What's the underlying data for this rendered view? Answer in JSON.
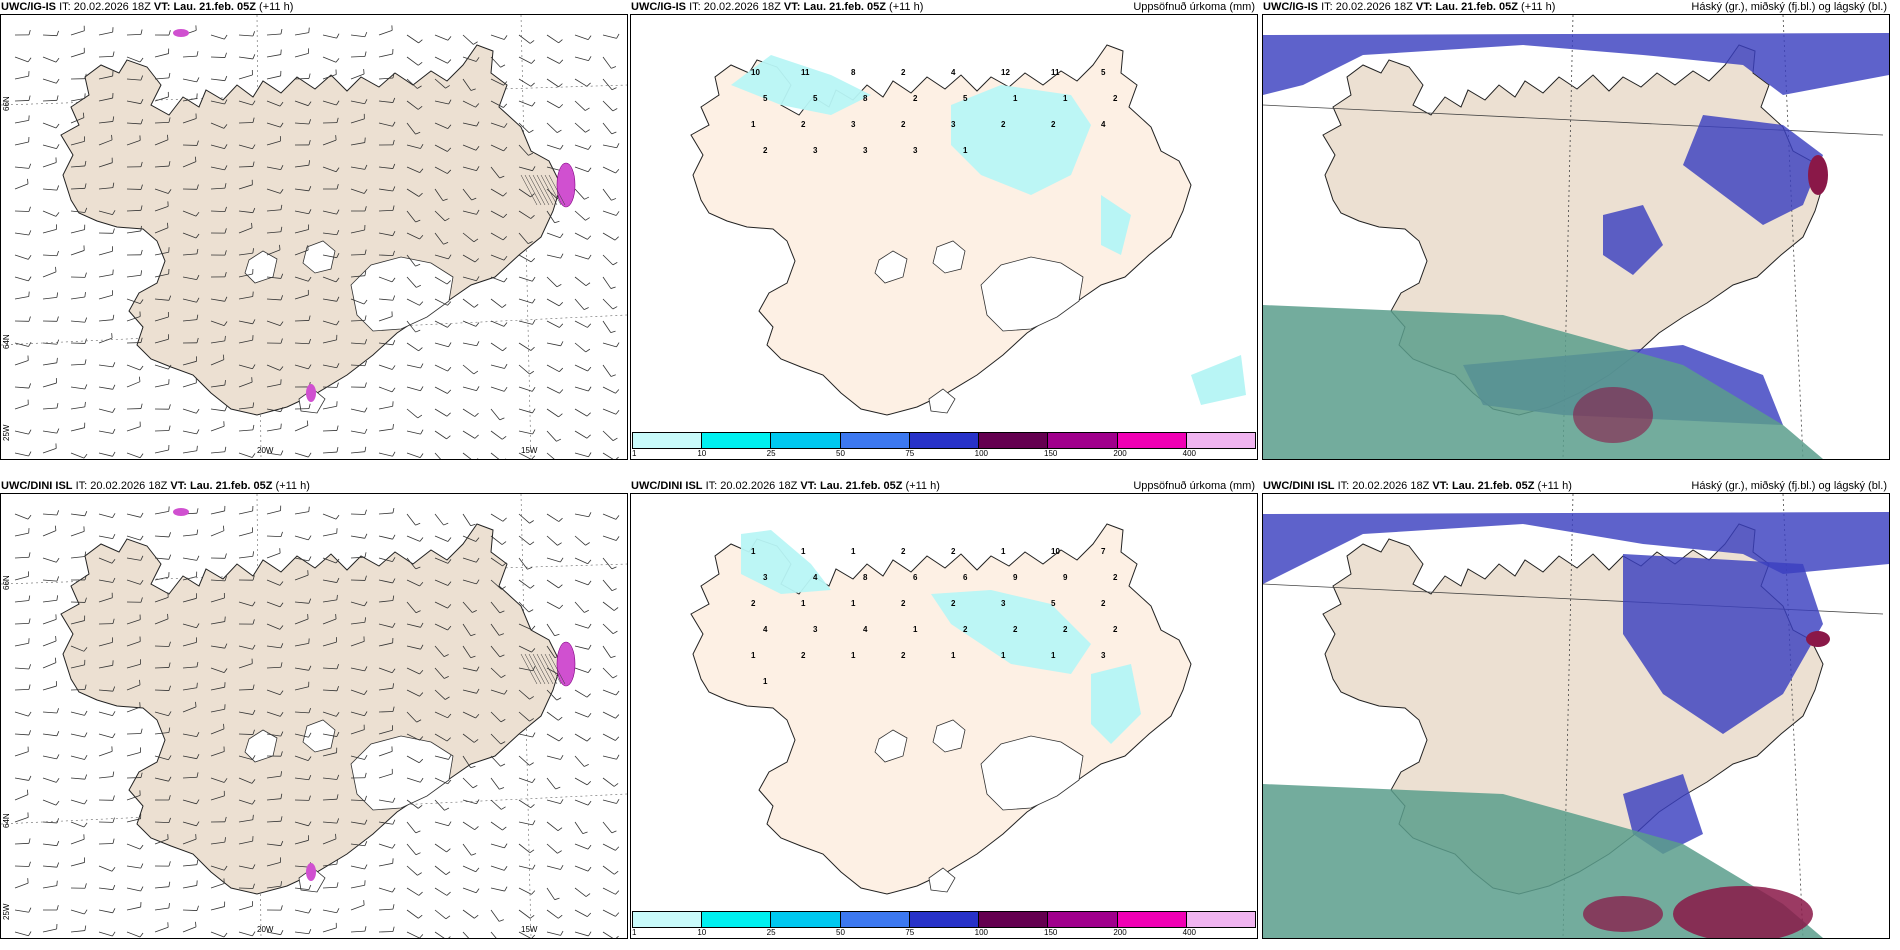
{
  "panels": {
    "top_left": {
      "model": "UWC/IG-IS",
      "it_label": "IT:",
      "it": "20.02.2026 18Z",
      "vt_label": "VT:",
      "vt": "Lau. 21.feb. 05Z",
      "lead": "(+11 h)",
      "title_right": ""
    },
    "top_mid": {
      "model": "UWC/IG-IS",
      "it_label": "IT:",
      "it": "20.02.2026 18Z",
      "vt_label": "VT:",
      "vt": "Lau. 21.feb. 05Z",
      "lead": "(+11 h)",
      "title_right": "Uppsöfnuð úrkoma (mm)"
    },
    "top_right": {
      "model": "UWC/IG-IS",
      "it_label": "IT:",
      "it": "20.02.2026 18Z",
      "vt_label": "VT:",
      "vt": "Lau. 21.feb. 05Z",
      "lead": "(+11 h)",
      "title_right": "Háský (gr.), miðský (fj.bl.) og lágský (bl.)"
    },
    "bot_left": {
      "model": "UWC/DINI ISL",
      "it_label": "IT:",
      "it": "20.02.2026 18Z",
      "vt_label": "VT:",
      "vt": "Lau. 21.feb. 05Z",
      "lead": "(+11 h)",
      "title_right": ""
    },
    "bot_mid": {
      "model": "UWC/DINI ISL",
      "it_label": "IT:",
      "it": "20.02.2026 18Z",
      "vt_label": "VT:",
      "vt": "Lau. 21.feb. 05Z",
      "lead": "(+11 h)",
      "title_right": "Uppsöfnuð úrkoma (mm)"
    },
    "bot_right": {
      "model": "UWC/DINI ISL",
      "it_label": "IT:",
      "it": "20.02.2026 18Z",
      "vt_label": "VT:",
      "vt": "Lau. 21.feb. 05Z",
      "lead": "(+11 h)",
      "title_right": "Háský (gr.), miðský (fj.bl.) og lágský (bl.)"
    }
  },
  "axis_labels": {
    "lon_20w": "20W",
    "lon_15w": "15W",
    "lon_25w": "25W",
    "lat_66n": "66N",
    "lat_64n": "64N"
  },
  "colorbar": {
    "labels": [
      "1",
      "10",
      "25",
      "50",
      "75",
      "100",
      "150",
      "200",
      "400"
    ],
    "colors": [
      "#c8fafa",
      "#00f0f0",
      "#00c8f0",
      "#3c78f0",
      "#2832c8",
      "#640050",
      "#a0008c",
      "#f000b4",
      "#f0b4f0"
    ]
  },
  "precip_numbers_top": [
    "10",
    "11",
    "8",
    "2",
    "4",
    "12",
    "11",
    "5",
    "5",
    "5",
    "8",
    "2",
    "5",
    "1",
    "1",
    "2",
    "1",
    "2",
    "3",
    "2",
    "3",
    "2",
    "2",
    "4",
    "2",
    "3",
    "3",
    "3",
    "1"
  ],
  "precip_numbers_bottom": [
    "1",
    "1",
    "1",
    "2",
    "2",
    "1",
    "10",
    "7",
    "3",
    "4",
    "8",
    "6",
    "6",
    "9",
    "9",
    "2",
    "2",
    "1",
    "1",
    "2",
    "2",
    "3",
    "5",
    "2",
    "4",
    "3",
    "4",
    "1",
    "2",
    "2",
    "2",
    "2",
    "1",
    "2",
    "1",
    "2",
    "1",
    "1",
    "1",
    "3",
    "1"
  ],
  "colors": {
    "land": "#ece0d2",
    "land_precip": "#fdf0e4",
    "precip_light": "#b8f5f5",
    "cloud_high": "#5a9e8c",
    "cloud_mid": "#3b3fc0",
    "cloud_low": "#8a1848"
  }
}
